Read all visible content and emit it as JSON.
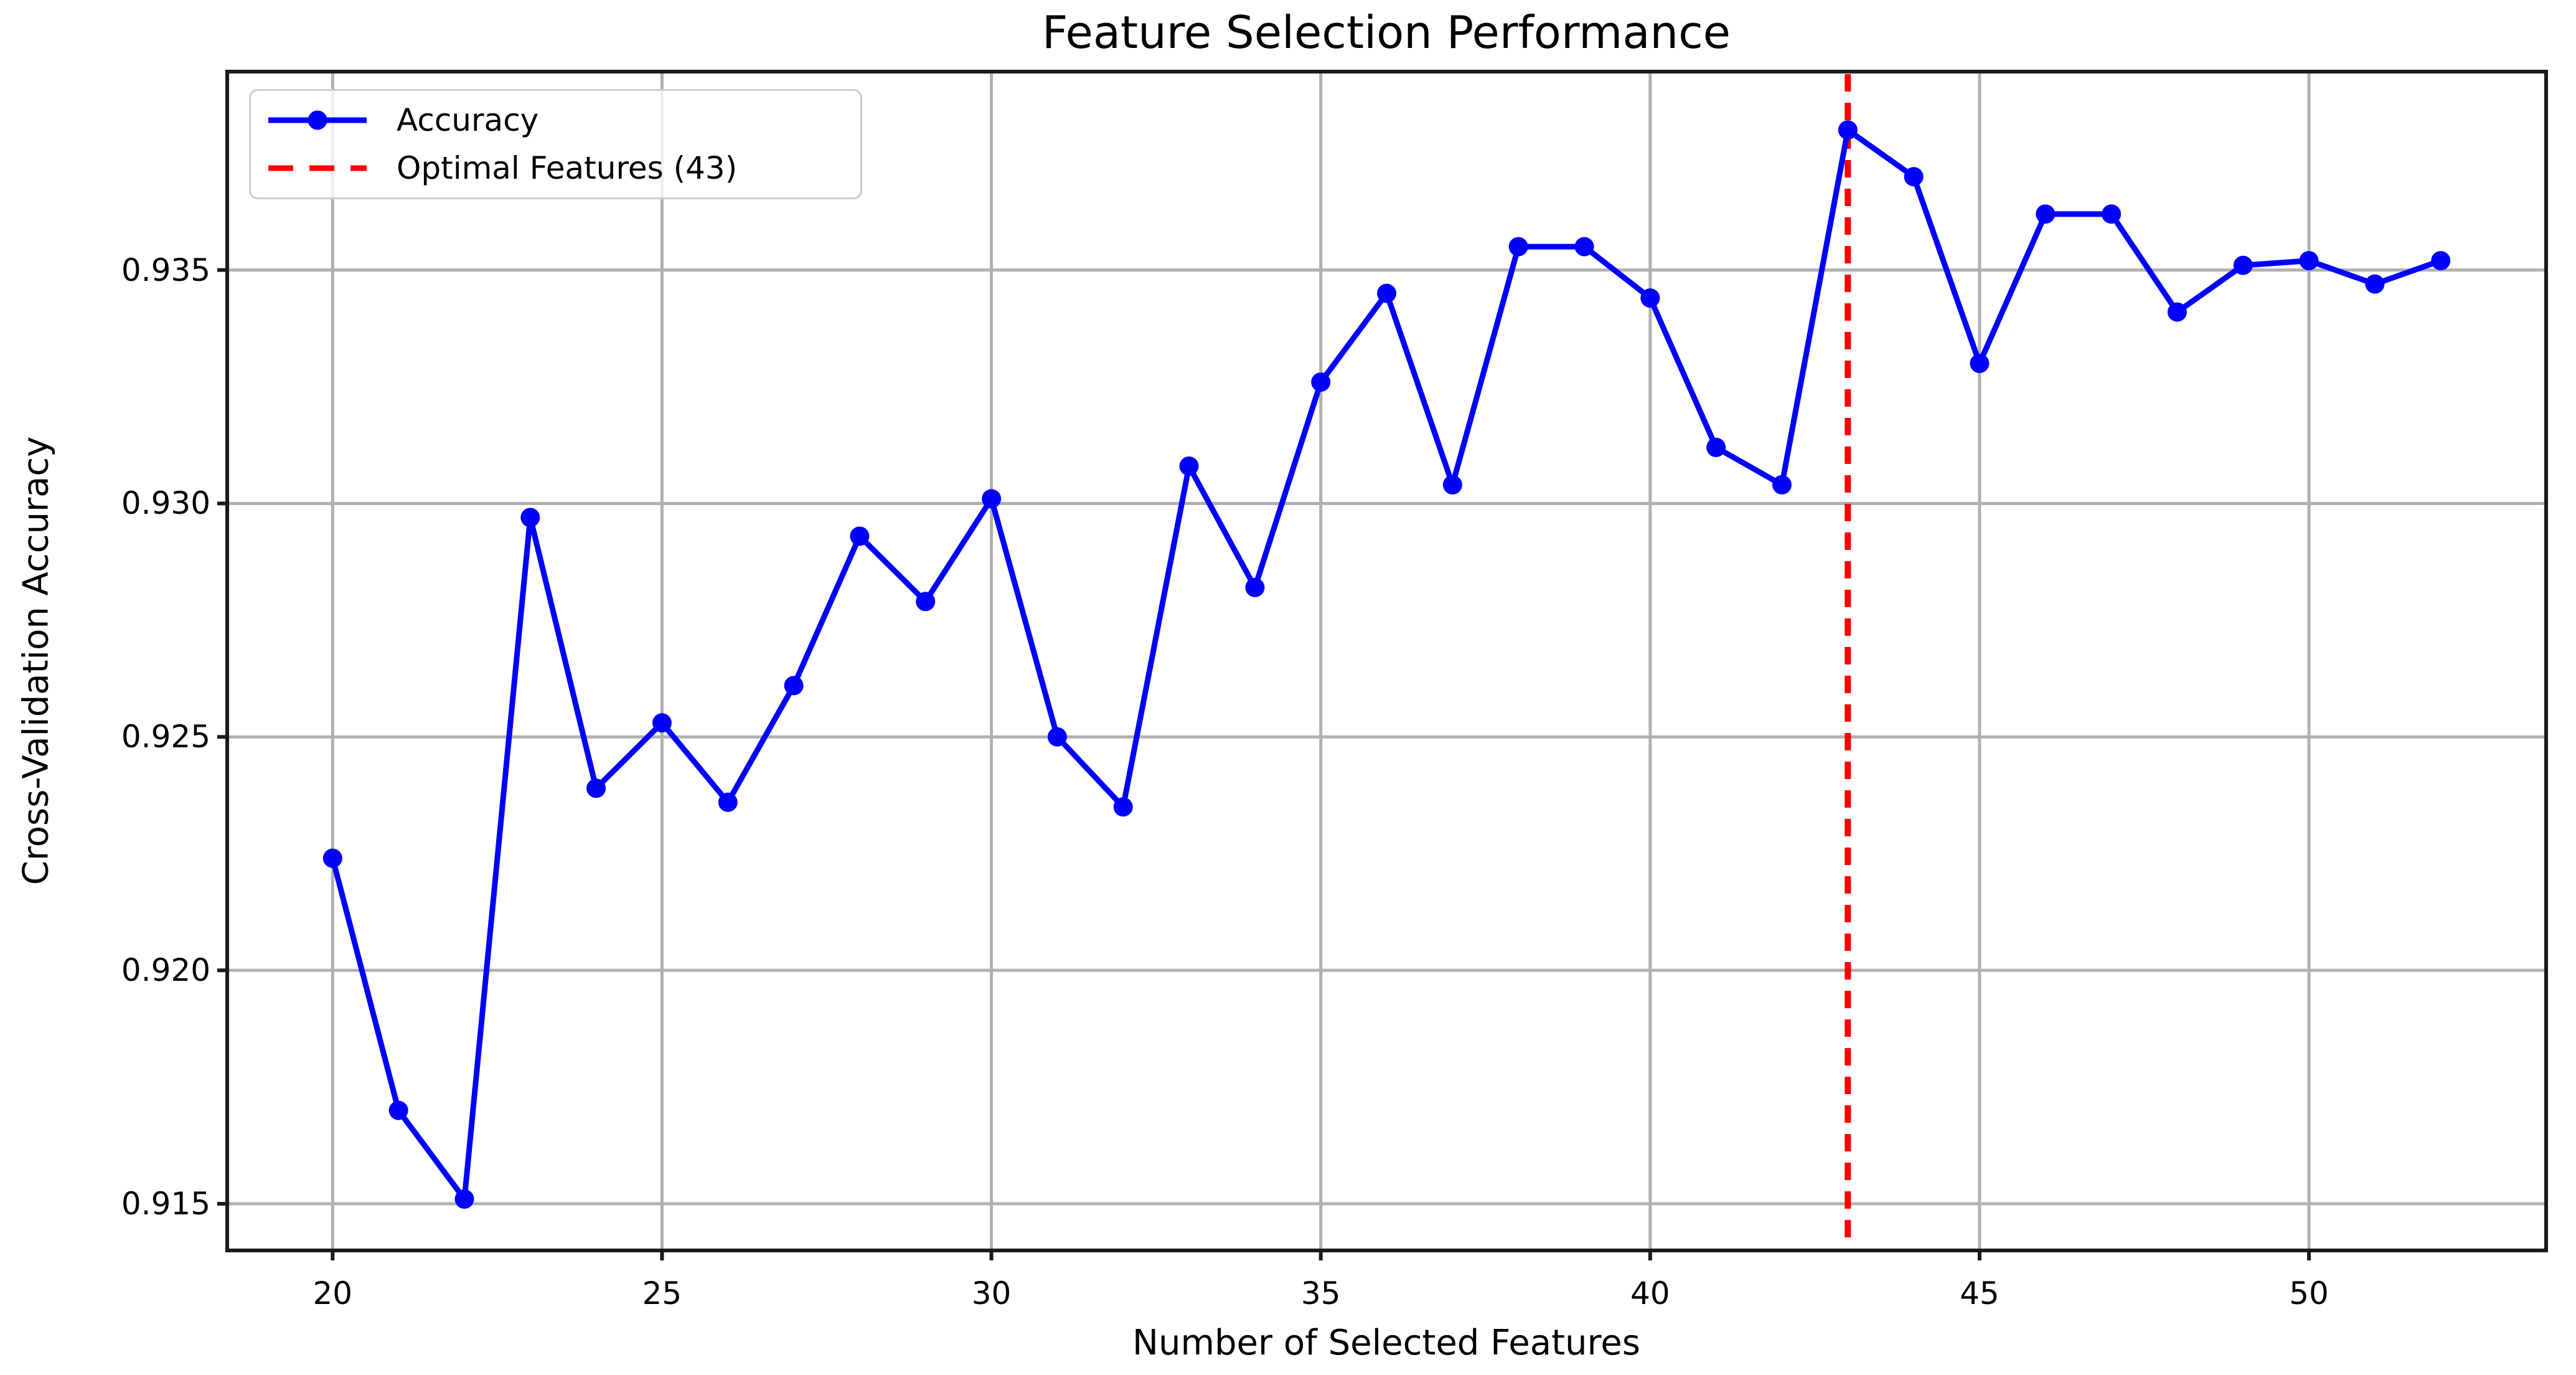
{
  "chart_data": {
    "type": "line",
    "title": "Feature Selection Performance",
    "xlabel": "Number of Selected Features",
    "ylabel": "Cross-Validation Accuracy",
    "x": [
      20,
      21,
      22,
      23,
      24,
      25,
      26,
      27,
      28,
      29,
      30,
      31,
      32,
      33,
      34,
      35,
      36,
      37,
      38,
      39,
      40,
      41,
      42,
      43,
      44,
      45,
      46,
      47,
      48,
      49,
      50,
      51,
      52
    ],
    "y": [
      0.9224,
      0.917,
      0.9151,
      0.9297,
      0.9239,
      0.9253,
      0.9236,
      0.9261,
      0.9293,
      0.9279,
      0.9301,
      0.925,
      0.9235,
      0.9308,
      0.9282,
      0.9326,
      0.9345,
      0.9304,
      0.9355,
      0.9355,
      0.9344,
      0.9312,
      0.9304,
      0.938,
      0.937,
      0.933,
      0.9362,
      0.9362,
      0.9341,
      0.9351,
      0.9352,
      0.9347,
      0.9352
    ],
    "optimal_x": 43,
    "xlim": [
      18.4,
      53.6
    ],
    "ylim": [
      0.914,
      0.93925
    ],
    "xticks": [
      20,
      25,
      30,
      35,
      40,
      45,
      50
    ],
    "xtick_labels": [
      "20",
      "25",
      "30",
      "35",
      "40",
      "45",
      "50"
    ],
    "yticks": [
      0.915,
      0.92,
      0.925,
      0.93,
      0.935
    ],
    "ytick_labels": [
      "0.915",
      "0.920",
      "0.925",
      "0.930",
      "0.935"
    ],
    "grid": true,
    "legend": {
      "position": "upper left",
      "items": [
        {
          "label": "Accuracy",
          "style": "line-marker"
        },
        {
          "label": "Optimal Features (43)",
          "style": "dashed"
        }
      ]
    },
    "colors": {
      "line": "#0000FF",
      "optimal": "#FF0000",
      "grid": "#B0B0B0",
      "spine": "#1A1A1A",
      "text": "#000000",
      "legend_edge": "#CCCCCC"
    }
  }
}
